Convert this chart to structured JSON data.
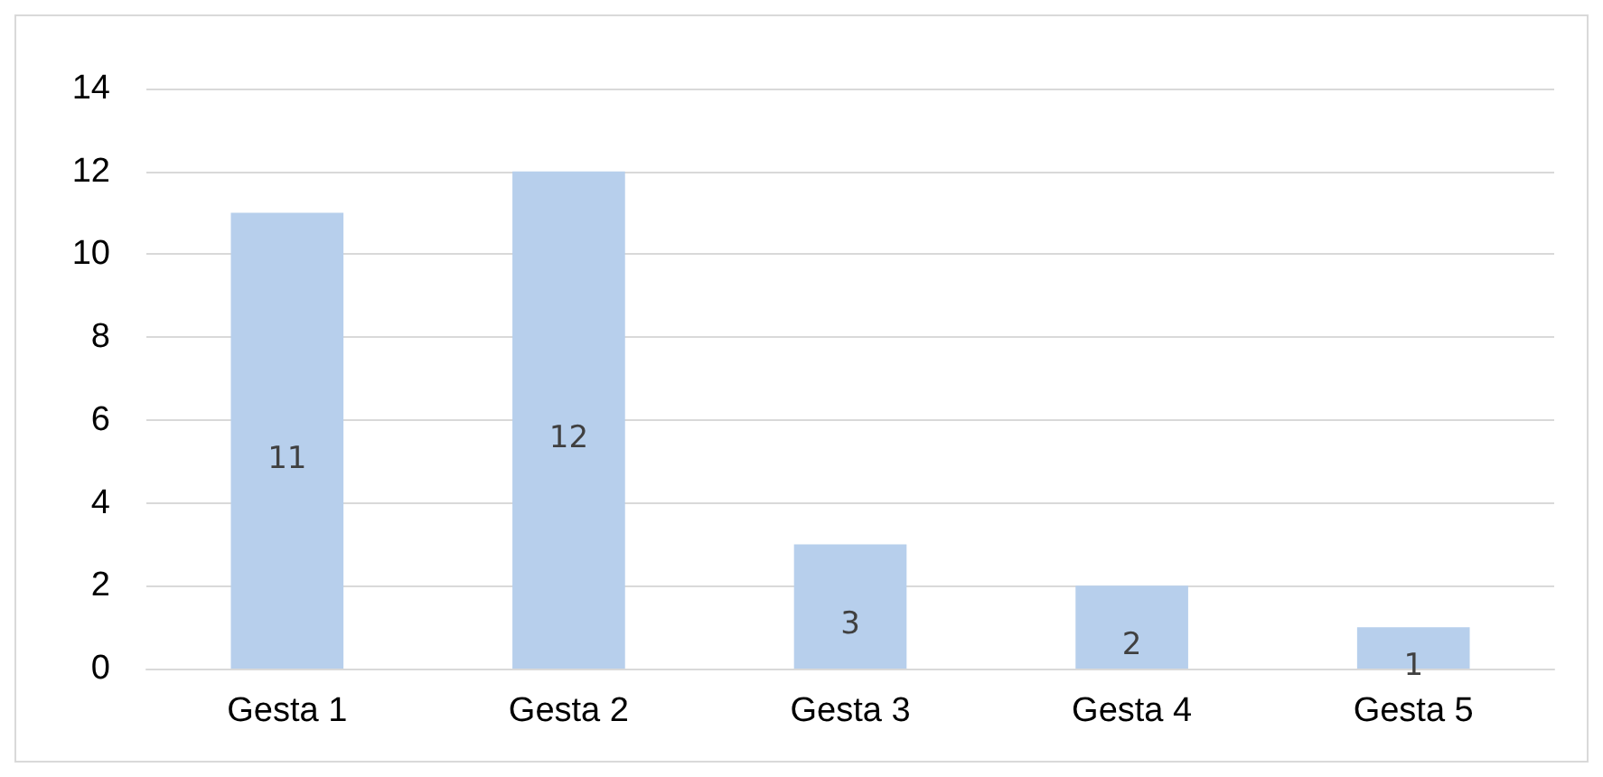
{
  "chart_data": {
    "type": "bar",
    "categories": [
      "Gesta 1",
      "Gesta 2",
      "Gesta 3",
      "Gesta 4",
      "Gesta 5"
    ],
    "values": [
      11,
      12,
      3,
      2,
      1
    ],
    "color": "#b7cfec",
    "ylim": [
      0,
      14
    ],
    "yticks": [
      0,
      2,
      4,
      6,
      8,
      10,
      12,
      14
    ],
    "grid": "y",
    "data_labels": true
  }
}
